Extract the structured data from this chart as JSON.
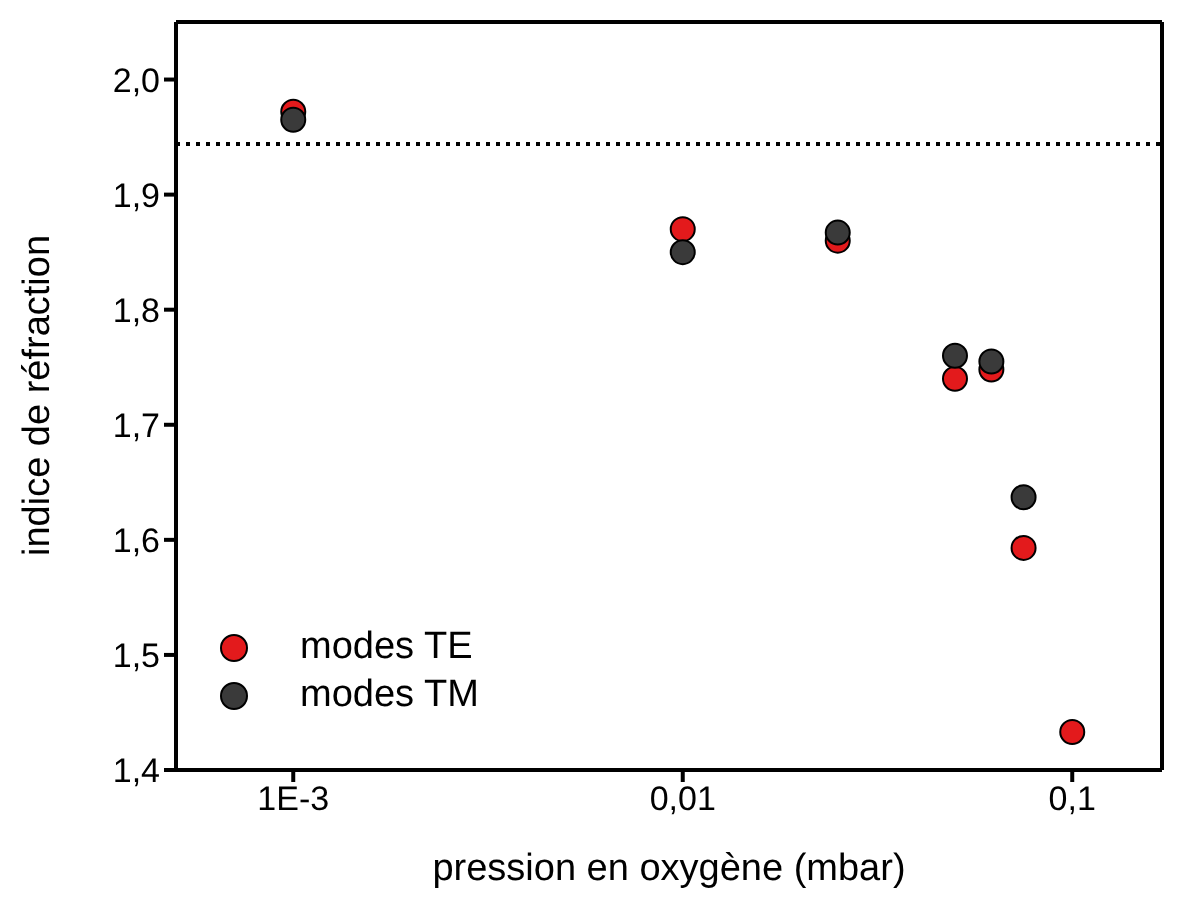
{
  "chart_data": {
    "type": "scatter",
    "xlabel": "pression en oxygène (mbar)",
    "ylabel": "indice de réfraction",
    "log": "x",
    "xlim": [
      0.0005,
      0.17
    ],
    "xticks": [
      {
        "value": 0.001,
        "label": "1E-3"
      },
      {
        "value": 0.01,
        "label": "0,01"
      },
      {
        "value": 0.1,
        "label": "0,1"
      }
    ],
    "ylim": [
      1.4,
      2.05
    ],
    "yticks": [
      {
        "value": 1.4,
        "label": "1,4"
      },
      {
        "value": 1.5,
        "label": "1,5"
      },
      {
        "value": 1.6,
        "label": "1,6"
      },
      {
        "value": 1.7,
        "label": "1,7"
      },
      {
        "value": 1.8,
        "label": "1,8"
      },
      {
        "value": 1.9,
        "label": "1,9"
      },
      {
        "value": 2.0,
        "label": "2,0"
      }
    ],
    "legend": "bottom left",
    "marker": "circle",
    "ref_lines": [
      {
        "axis": "y",
        "value": 1.944,
        "line_style": "dotted",
        "color": "#000000"
      }
    ],
    "series": [
      {
        "name": "modes TE",
        "color": "#e31a1c",
        "x": [
          0.001,
          0.01,
          0.025,
          0.05,
          0.062,
          0.075,
          0.1
        ],
        "values": [
          1.972,
          1.87,
          1.86,
          1.74,
          1.748,
          1.593,
          1.433
        ]
      },
      {
        "name": "modes TM",
        "color": "#3a3a3a",
        "x": [
          0.001,
          0.01,
          0.025,
          0.05,
          0.062,
          0.075
        ],
        "values": [
          1.965,
          1.85,
          1.867,
          1.76,
          1.755,
          1.637
        ]
      }
    ]
  }
}
